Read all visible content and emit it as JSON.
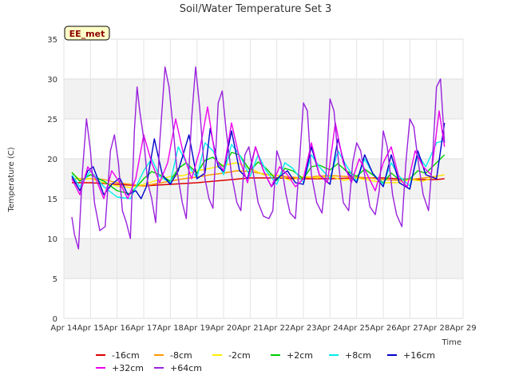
{
  "chart_data": {
    "type": "line",
    "title": "Soil/Water Temperature Set 3",
    "xlabel": "Time",
    "ylabel": "Temperature (C)",
    "badge": "EE_met",
    "ylim": [
      0,
      35
    ],
    "yticks": [
      0,
      5,
      10,
      15,
      20,
      25,
      30,
      35
    ],
    "xlim": [
      14,
      29
    ],
    "xticks": [
      {
        "v": 14,
        "label": "Apr 14"
      },
      {
        "v": 15,
        "label": "Apr 15"
      },
      {
        "v": 16,
        "label": "Apr 16"
      },
      {
        "v": 17,
        "label": "Apr 17"
      },
      {
        "v": 18,
        "label": "Apr 18"
      },
      {
        "v": 19,
        "label": "Apr 19"
      },
      {
        "v": 20,
        "label": "Apr 20"
      },
      {
        "v": 21,
        "label": "Apr 21"
      },
      {
        "v": 22,
        "label": "Apr 22"
      },
      {
        "v": 23,
        "label": "Apr 23"
      },
      {
        "v": 24,
        "label": "Apr 24"
      },
      {
        "v": 25,
        "label": "Apr 25"
      },
      {
        "v": 26,
        "label": "Apr 26"
      },
      {
        "v": 27,
        "label": "Apr 27"
      },
      {
        "v": 28,
        "label": "Apr 28"
      },
      {
        "v": 29,
        "label": "Apr 29"
      }
    ],
    "grid": true,
    "legend_position": "bottom",
    "series": [
      {
        "name": "-16cm",
        "color": "#dd0000",
        "x": [
          14.3,
          15.0,
          16.0,
          17.0,
          18.0,
          19.0,
          20.0,
          21.0,
          22.0,
          23.0,
          24.0,
          25.0,
          26.0,
          27.0,
          28.0,
          28.3
        ],
        "y": [
          17.0,
          17.0,
          16.8,
          16.6,
          16.8,
          17.0,
          17.3,
          17.6,
          17.6,
          17.5,
          17.5,
          17.6,
          17.6,
          17.4,
          17.4,
          17.5
        ]
      },
      {
        "name": "-8cm",
        "color": "#ff9900",
        "x": [
          14.3,
          15.0,
          15.5,
          16.0,
          16.5,
          17.0,
          17.5,
          18.0,
          18.5,
          19.0,
          19.5,
          20.0,
          20.5,
          21.0,
          21.5,
          22.0,
          22.5,
          23.0,
          23.5,
          24.0,
          24.5,
          25.0,
          25.5,
          26.0,
          26.5,
          27.0,
          27.5,
          28.0,
          28.3
        ],
        "y": [
          17.5,
          17.5,
          17.4,
          17.0,
          16.8,
          16.6,
          16.9,
          17.2,
          17.5,
          17.7,
          18.0,
          18.2,
          18.5,
          18.4,
          18.1,
          17.9,
          17.7,
          17.6,
          17.8,
          17.9,
          17.8,
          17.7,
          17.6,
          17.4,
          17.3,
          17.4,
          17.6,
          17.8,
          18.0
        ]
      },
      {
        "name": "-2cm",
        "color": "#ffee00",
        "x": [
          14.3,
          14.6,
          15.0,
          15.5,
          16.0,
          16.5,
          17.0,
          17.5,
          18.0,
          18.5,
          19.0,
          19.5,
          20.0,
          20.5,
          21.0,
          21.5,
          22.0,
          22.5,
          23.0,
          23.5,
          24.0,
          24.5,
          25.0,
          25.5,
          26.0,
          26.5,
          27.0,
          27.5,
          28.0,
          28.3
        ],
        "y": [
          18.2,
          17.4,
          17.5,
          17.0,
          16.6,
          16.4,
          16.8,
          17.3,
          17.8,
          17.9,
          18.5,
          18.8,
          19.2,
          19.5,
          18.8,
          18.0,
          17.9,
          17.3,
          17.8,
          17.6,
          17.8,
          17.3,
          17.6,
          17.3,
          17.0,
          17.0,
          17.4,
          17.2,
          17.8,
          18.0
        ]
      },
      {
        "name": "+2cm",
        "color": "#00cc00",
        "x": [
          14.3,
          14.6,
          15.0,
          15.5,
          16.0,
          16.5,
          17.0,
          17.3,
          17.6,
          18.0,
          18.3,
          18.6,
          19.0,
          19.3,
          19.6,
          20.0,
          20.3,
          20.6,
          21.0,
          21.3,
          21.6,
          22.0,
          22.3,
          22.6,
          23.0,
          23.3,
          23.6,
          24.0,
          24.3,
          24.6,
          25.0,
          25.3,
          25.6,
          26.0,
          26.3,
          26.6,
          27.0,
          27.3,
          27.6,
          28.0,
          28.3
        ],
        "y": [
          18.3,
          17.2,
          18.0,
          17.2,
          16.0,
          15.6,
          17.5,
          18.4,
          18.0,
          17.2,
          18.8,
          19.5,
          18.2,
          19.8,
          20.2,
          19.0,
          20.8,
          20.5,
          18.5,
          19.6,
          18.8,
          17.3,
          18.8,
          18.5,
          17.5,
          19.0,
          19.2,
          18.6,
          19.4,
          18.5,
          17.8,
          18.7,
          18.0,
          17.0,
          18.2,
          17.4,
          17.5,
          18.5,
          18.2,
          19.5,
          20.5
        ]
      },
      {
        "name": "+8cm",
        "color": "#00eeee",
        "x": [
          14.3,
          14.6,
          15.0,
          15.5,
          16.0,
          16.5,
          17.0,
          17.3,
          17.6,
          18.0,
          18.3,
          18.6,
          19.0,
          19.3,
          19.6,
          20.0,
          20.3,
          20.6,
          21.0,
          21.3,
          21.6,
          22.0,
          22.3,
          22.6,
          23.0,
          23.3,
          23.6,
          24.0,
          24.3,
          24.6,
          25.0,
          25.3,
          25.6,
          26.0,
          26.3,
          26.6,
          27.0,
          27.3,
          27.6,
          28.0,
          28.3
        ],
        "y": [
          18.0,
          16.5,
          18.5,
          16.5,
          15.2,
          15.0,
          18.5,
          20.0,
          17.8,
          17.0,
          21.5,
          19.5,
          17.6,
          22.0,
          21.0,
          18.0,
          21.8,
          20.5,
          17.8,
          20.5,
          18.5,
          16.8,
          19.5,
          18.8,
          17.0,
          20.5,
          19.0,
          17.5,
          21.0,
          19.2,
          17.2,
          20.0,
          18.2,
          16.8,
          19.5,
          17.8,
          16.6,
          20.5,
          19.0,
          22.0,
          22.3
        ]
      },
      {
        "name": "+16cm",
        "color": "#0000cc",
        "x": [
          14.3,
          14.6,
          14.9,
          15.1,
          15.5,
          15.8,
          16.1,
          16.4,
          16.7,
          16.9,
          17.1,
          17.4,
          17.7,
          18.0,
          18.3,
          18.7,
          19.0,
          19.3,
          19.5,
          19.8,
          20.0,
          20.3,
          20.6,
          20.9,
          21.2,
          21.5,
          21.8,
          22.0,
          22.4,
          22.7,
          23.0,
          23.3,
          23.6,
          24.0,
          24.3,
          24.6,
          25.0,
          25.3,
          25.6,
          26.0,
          26.3,
          26.6,
          27.0,
          27.3,
          27.6,
          28.0,
          28.3
        ],
        "y": [
          17.8,
          16.0,
          18.5,
          19.0,
          15.5,
          16.8,
          17.6,
          15.5,
          16.0,
          15.0,
          16.5,
          22.5,
          18.0,
          16.8,
          18.5,
          23.0,
          17.5,
          18.2,
          23.8,
          19.0,
          18.4,
          23.5,
          18.5,
          17.5,
          21.5,
          18.5,
          16.5,
          17.5,
          18.5,
          17.0,
          16.8,
          21.5,
          18.0,
          16.8,
          22.5,
          18.5,
          17.0,
          20.5,
          18.2,
          16.5,
          20.5,
          17.0,
          16.2,
          21.0,
          18.0,
          17.5,
          24.5
        ]
      },
      {
        "name": "+32cm",
        "color": "#ee00ee",
        "x": [
          14.3,
          14.6,
          14.9,
          15.2,
          15.5,
          15.8,
          16.1,
          16.4,
          16.7,
          17.0,
          17.3,
          17.6,
          17.9,
          18.2,
          18.5,
          18.8,
          19.1,
          19.4,
          19.7,
          20.0,
          20.3,
          20.6,
          20.9,
          21.2,
          21.5,
          21.8,
          22.1,
          22.4,
          22.7,
          23.0,
          23.3,
          23.6,
          23.9,
          24.2,
          24.5,
          24.8,
          25.1,
          25.4,
          25.7,
          26.0,
          26.3,
          26.6,
          26.9,
          27.2,
          27.5,
          27.8,
          28.1,
          28.3
        ],
        "y": [
          17.5,
          15.5,
          19.0,
          17.5,
          15.0,
          18.5,
          17.0,
          15.0,
          17.5,
          23.0,
          19.5,
          17.0,
          19.5,
          25.0,
          20.5,
          17.5,
          21.0,
          26.5,
          20.0,
          18.5,
          24.5,
          20.0,
          17.0,
          21.5,
          18.5,
          16.5,
          19.0,
          18.0,
          16.5,
          17.5,
          22.0,
          18.0,
          17.0,
          24.5,
          19.5,
          17.0,
          20.0,
          18.0,
          16.0,
          19.5,
          21.5,
          17.5,
          16.5,
          21.0,
          19.0,
          18.0,
          26.0,
          21.5
        ]
      },
      {
        "name": "+64cm",
        "color": "#9922dd",
        "x": [
          14.3,
          14.4,
          14.55,
          14.7,
          14.85,
          15.0,
          15.15,
          15.35,
          15.55,
          15.75,
          15.9,
          16.05,
          16.2,
          16.35,
          16.5,
          16.65,
          16.75,
          16.85,
          17.0,
          17.15,
          17.3,
          17.45,
          17.6,
          17.8,
          17.95,
          18.1,
          18.25,
          18.45,
          18.6,
          18.8,
          18.95,
          19.1,
          19.3,
          19.45,
          19.6,
          19.8,
          19.95,
          20.1,
          20.3,
          20.5,
          20.65,
          20.8,
          20.95,
          21.1,
          21.3,
          21.5,
          21.7,
          21.85,
          22.0,
          22.15,
          22.35,
          22.5,
          22.7,
          22.85,
          23.0,
          23.15,
          23.3,
          23.5,
          23.7,
          23.85,
          24.0,
          24.15,
          24.35,
          24.5,
          24.7,
          24.85,
          25.0,
          25.15,
          25.35,
          25.5,
          25.7,
          25.85,
          26.0,
          26.15,
          26.35,
          26.5,
          26.7,
          26.85,
          27.0,
          27.15,
          27.3,
          27.5,
          27.7,
          27.85,
          28.0,
          28.15,
          28.3
        ],
        "y": [
          12.7,
          10.5,
          8.7,
          18.5,
          25.0,
          21.0,
          14.5,
          11.0,
          11.5,
          21.0,
          23.0,
          19.5,
          13.5,
          12.0,
          10.0,
          23.5,
          29.0,
          26.0,
          22.5,
          17.0,
          15.0,
          12.0,
          22.0,
          31.5,
          29.0,
          24.0,
          18.5,
          14.5,
          12.5,
          25.0,
          31.5,
          26.5,
          17.5,
          15.0,
          13.8,
          27.0,
          28.5,
          23.5,
          18.0,
          14.5,
          13.5,
          20.5,
          21.5,
          18.5,
          14.5,
          12.8,
          12.5,
          13.5,
          21.0,
          19.5,
          15.5,
          13.2,
          12.5,
          19.5,
          27.0,
          26.0,
          18.0,
          14.5,
          13.2,
          18.0,
          27.5,
          26.0,
          18.5,
          14.5,
          13.5,
          19.5,
          22.0,
          21.0,
          17.0,
          14.0,
          13.0,
          16.0,
          23.5,
          21.5,
          15.5,
          13.0,
          11.5,
          19.5,
          25.0,
          24.0,
          20.0,
          15.5,
          13.5,
          20.0,
          29.0,
          30.0,
          22.0
        ]
      }
    ]
  }
}
